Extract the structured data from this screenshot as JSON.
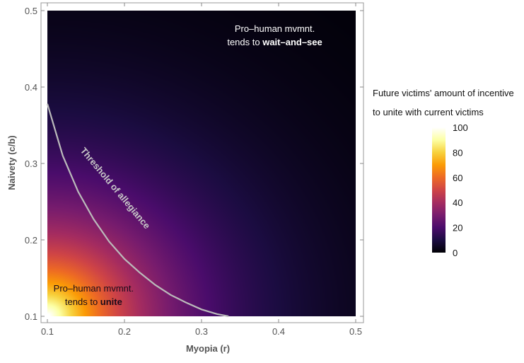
{
  "chart_data": {
    "type": "heatmap",
    "title": "",
    "xlabel": "Myopia  (r)",
    "ylabel": "Naivety  (c/b)",
    "xlim": [
      0.1,
      0.5
    ],
    "ylim": [
      0.1,
      0.5
    ],
    "x_ticks": [
      0.1,
      0.2,
      0.3,
      0.4,
      0.5
    ],
    "x_tick_labels": [
      "0.1",
      "0.2",
      "0.3",
      "0.4",
      "0.5"
    ],
    "y_ticks": [
      0.1,
      0.2,
      0.3,
      0.4,
      0.5
    ],
    "y_tick_labels": [
      "0.1",
      "0.2",
      "0.3",
      "0.4",
      "0.5"
    ],
    "grid": false,
    "colormap": {
      "name": "inferno",
      "stops": [
        "#000004",
        "#1b0c41",
        "#4a0c6b",
        "#781c6d",
        "#a52c60",
        "#cf4446",
        "#ed6925",
        "#fb9b06",
        "#f7d13d",
        "#fcffa4",
        "#ffffff"
      ]
    },
    "field_description": "incentive value 0–100; high at low myopia & low naivety, decaying toward upper right",
    "legend": {
      "title_line1": "Future victims' amount of incentive",
      "title_line2": "to unite with current victims",
      "range": [
        0,
        100
      ],
      "ticks": [
        0,
        20,
        40,
        60,
        80,
        100
      ],
      "tick_labels": [
        "0",
        "20",
        "40",
        "60",
        "80",
        "100"
      ],
      "position": "right"
    },
    "threshold_curve": {
      "label": "Threshold of allegiance",
      "color": "#bbbbbb",
      "points": [
        [
          0.1,
          0.378
        ],
        [
          0.12,
          0.31
        ],
        [
          0.14,
          0.263
        ],
        [
          0.16,
          0.227
        ],
        [
          0.18,
          0.198
        ],
        [
          0.2,
          0.175
        ],
        [
          0.22,
          0.157
        ],
        [
          0.24,
          0.141
        ],
        [
          0.26,
          0.128
        ],
        [
          0.28,
          0.118
        ],
        [
          0.3,
          0.109
        ],
        [
          0.32,
          0.103
        ],
        [
          0.335,
          0.1
        ]
      ]
    },
    "annotations": [
      {
        "line1": "Pro–human mvmnt.",
        "line2_prefix": "tends to ",
        "line2_bold": "wait–and–see",
        "x": 0.395,
        "y": 0.465,
        "color": "#ffffff"
      },
      {
        "line1": "Pro–human mvmnt.",
        "line2_prefix": "tends to ",
        "line2_bold": "unite",
        "x": 0.16,
        "y": 0.125,
        "color": "#1a0a1a"
      }
    ]
  }
}
